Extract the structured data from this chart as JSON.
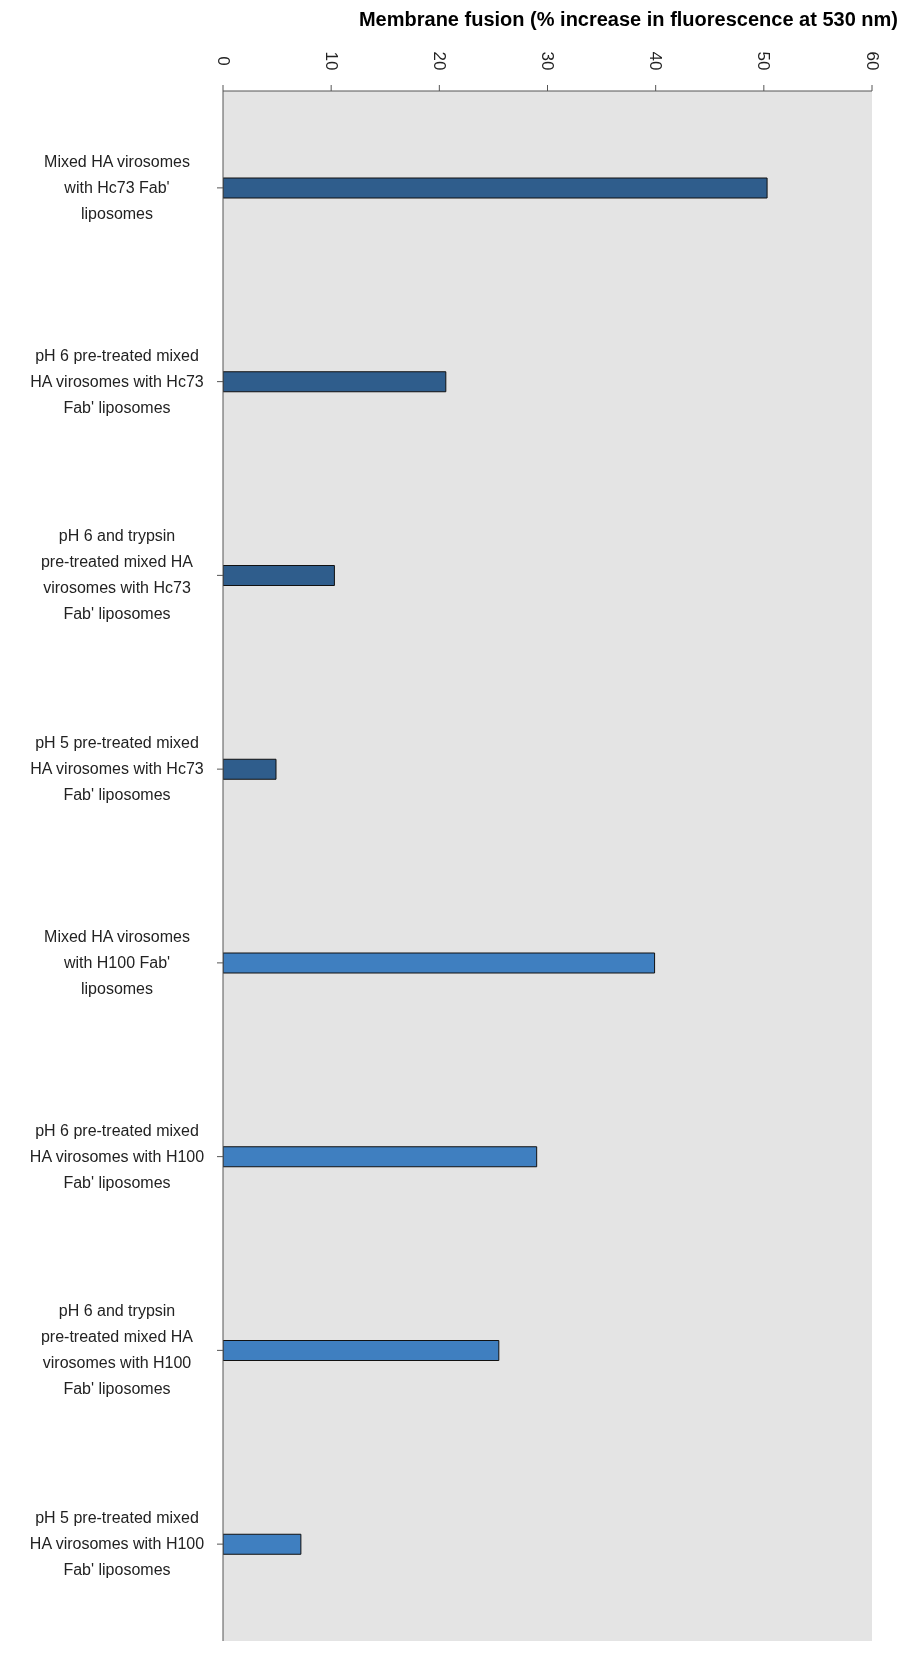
{
  "chart_data": {
    "type": "bar",
    "orientation": "horizontal",
    "xlabel": "Membrane fusion (% increase in fluorescence at 530 nm)",
    "categories": [
      "Mixed HA virosomes with Hc73 Fab' liposomes",
      "pH 6 pre-treated mixed HA virosomes with Hc73 Fab' liposomes",
      "pH 6 and trypsin pre-treated mixed HA virosomes with Hc73 Fab' liposomes",
      "pH 5 pre-treated mixed HA virosomes with Hc73 Fab' liposomes",
      "Mixed HA virosomes with H100 Fab' liposomes",
      "pH 6 pre-treated mixed HA virosomes with H100 Fab' liposomes",
      "pH 6 and trypsin pre-treated mixed HA virosomes with H100 Fab' liposomes",
      "pH 5 pre-treated mixed HA virosomes with H100 Fab' liposomes"
    ],
    "values": [
      50.3,
      20.6,
      10.3,
      4.9,
      39.9,
      29.0,
      25.5,
      7.2
    ],
    "colors": [
      "#2f5d8c",
      "#2f5d8c",
      "#2f5d8c",
      "#2f5d8c",
      "#3f7fc0",
      "#3f7fc0",
      "#3f7fc0",
      "#3f7fc0"
    ],
    "xlim": [
      0,
      60
    ],
    "xticks": [
      0,
      10,
      20,
      30,
      40,
      50,
      60
    ]
  }
}
